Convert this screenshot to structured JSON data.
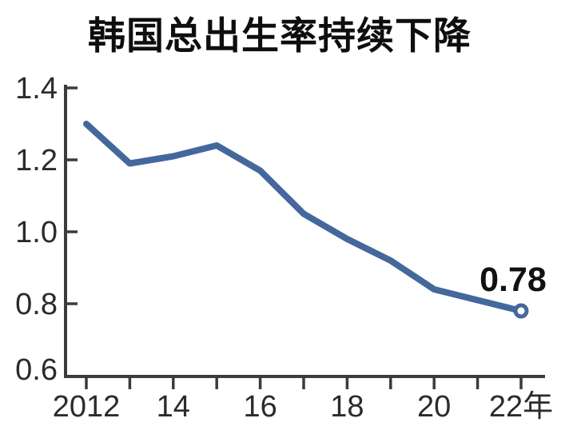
{
  "title": "韩国总出生率持续下降",
  "chart_data": {
    "type": "line",
    "title": "韩国总出生率持续下降",
    "x": [
      2012,
      2013,
      2014,
      2015,
      2016,
      2017,
      2018,
      2019,
      2020,
      2021,
      2022
    ],
    "values": [
      1.3,
      1.19,
      1.21,
      1.24,
      1.17,
      1.05,
      0.98,
      0.92,
      0.84,
      0.81,
      0.78
    ],
    "xlabel": "",
    "ylabel": "",
    "ylim": [
      0.6,
      1.4
    ],
    "xlim": [
      2012,
      2022
    ],
    "y_ticks": [
      0.6,
      0.8,
      1.0,
      1.2,
      1.4
    ],
    "y_tick_labels": [
      "0.6",
      "0.8",
      "1.0",
      "1.2",
      "1.4"
    ],
    "x_minor_tick_years": [
      2012,
      2013,
      2014,
      2015,
      2016,
      2017,
      2018,
      2019,
      2020,
      2021,
      2022
    ],
    "x_axis_labels": [
      {
        "year": 2012,
        "text": "2012"
      },
      {
        "year": 2014,
        "text": "14"
      },
      {
        "year": 2016,
        "text": "16"
      },
      {
        "year": 2018,
        "text": "18"
      },
      {
        "year": 2020,
        "text": "20"
      },
      {
        "year": 2022,
        "text": "22年"
      }
    ],
    "annotation": {
      "text": "0.78",
      "year": 2022,
      "value": 0.78
    },
    "end_marker": "open-circle",
    "grid": false,
    "legend": null,
    "colors": {
      "line": "#44689b",
      "marker_fill": "#ffffff",
      "axis": "#3b3b3b",
      "tick_text": "#2b2b2b",
      "annotation_text": "#111111",
      "background": "#ffffff"
    }
  }
}
